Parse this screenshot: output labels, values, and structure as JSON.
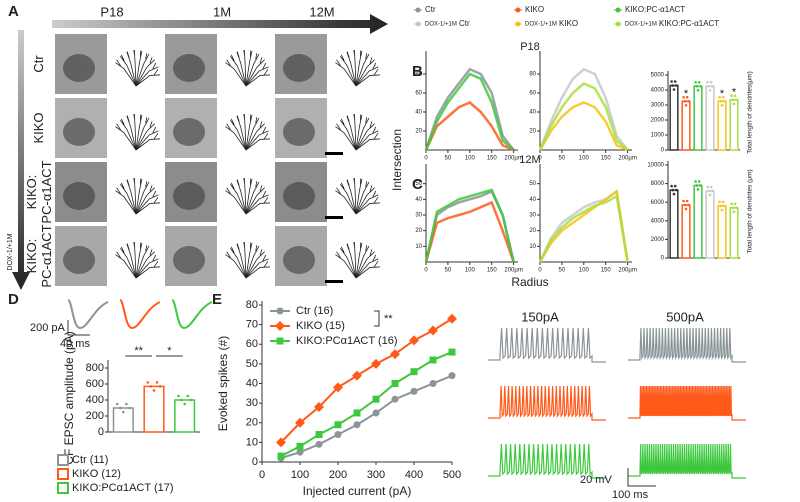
{
  "panel_labels": [
    "A",
    "B",
    "C",
    "D",
    "E"
  ],
  "panel_a": {
    "columns": [
      "P18",
      "1M",
      "12M"
    ],
    "rows": [
      [
        "Ctr"
      ],
      [
        "KIKO"
      ],
      [
        "KIKO:",
        "PC-α1ACT"
      ],
      [
        "KIKO:",
        "PC-α1ACT"
      ]
    ],
    "last_row_prefix": "DOX-1/+1M"
  },
  "legend": [
    {
      "name": "Ctr",
      "color": "#8a9499"
    },
    {
      "prefix": "DOX-1/+1M",
      "name": "Ctr",
      "color": "#c8c8c8"
    },
    {
      "name": "KIKO",
      "color": "#ff5a1a"
    },
    {
      "prefix": "DOX-1/+1M",
      "name": "KIKO",
      "color": "#f4c21a"
    },
    {
      "name": "KIKO:PC-α1ACT",
      "color": "#3ec83e"
    },
    {
      "prefix": "DOX-1/+1M",
      "name": "KIKO:PC-α1ACT",
      "color": "#a8e040"
    }
  ],
  "sholl_axes": {
    "y": "Intersection",
    "x": "Radius"
  },
  "chart_data": [
    {
      "type": "line",
      "title": "P18",
      "x": [
        0,
        25,
        50,
        75,
        100,
        125,
        150,
        175,
        200
      ],
      "xlim": [
        0,
        210
      ],
      "ylim": [
        0,
        100
      ],
      "xticks": [
        0,
        50,
        100,
        150,
        {
          "value": 200,
          "label": "200μm"
        }
      ],
      "yticks": [
        20,
        40,
        60,
        80
      ],
      "series": [
        {
          "color": "#8a9499",
          "values": [
            0,
            35,
            55,
            70,
            85,
            80,
            60,
            15,
            0
          ]
        },
        {
          "color": "#ff5a1a",
          "values": [
            0,
            25,
            35,
            45,
            50,
            40,
            25,
            5,
            0
          ]
        },
        {
          "color": "#3ec83e",
          "values": [
            0,
            30,
            50,
            65,
            80,
            75,
            50,
            10,
            0
          ]
        }
      ]
    },
    {
      "type": "line",
      "x": [
        0,
        25,
        50,
        75,
        100,
        125,
        150,
        175,
        200
      ],
      "xlim": [
        0,
        210
      ],
      "ylim": [
        0,
        100
      ],
      "xticks": [
        0,
        50,
        100,
        150,
        {
          "value": 200,
          "label": "200μm"
        }
      ],
      "yticks": [
        20,
        40,
        60,
        80
      ],
      "series": [
        {
          "color": "#c8c8c8",
          "values": [
            0,
            30,
            55,
            75,
            85,
            80,
            55,
            15,
            0
          ]
        },
        {
          "color": "#f4c21a",
          "values": [
            0,
            20,
            35,
            45,
            50,
            45,
            30,
            5,
            0
          ]
        },
        {
          "color": "#a8e040",
          "values": [
            0,
            25,
            45,
            60,
            70,
            65,
            45,
            10,
            0
          ]
        }
      ]
    },
    {
      "type": "bar",
      "ylabel": "Total length of dendrites(μm)",
      "values": [
        4300,
        3250,
        4250,
        4250,
        3250,
        3350
      ],
      "colors": [
        "#333333",
        "#ff5a1a",
        "#3ec83e",
        "#c8c8c8",
        "#f4c21a",
        "#a8e040"
      ],
      "annotations": [
        null,
        "*",
        null,
        null,
        "*",
        "*"
      ],
      "ylim": [
        0,
        5000
      ],
      "yticks": [
        0,
        1000,
        2000,
        3000,
        4000,
        5000
      ]
    },
    {
      "type": "line",
      "title": "12M",
      "x": [
        0,
        25,
        50,
        75,
        100,
        125,
        150,
        175,
        200
      ],
      "xlim": [
        0,
        210
      ],
      "ylim": [
        0,
        60
      ],
      "xticks": [
        0,
        50,
        100,
        150,
        {
          "value": 200,
          "label": "200μm"
        }
      ],
      "yticks": [
        10,
        20,
        30,
        40,
        50
      ],
      "series": [
        {
          "color": "#8a9499",
          "values": [
            0,
            30,
            35,
            38,
            40,
            42,
            45,
            30,
            0
          ]
        },
        {
          "color": "#ff5a1a",
          "values": [
            0,
            25,
            28,
            30,
            32,
            35,
            38,
            20,
            0
          ]
        },
        {
          "color": "#3ec83e",
          "values": [
            0,
            32,
            36,
            40,
            42,
            44,
            46,
            30,
            0
          ]
        }
      ]
    },
    {
      "type": "line",
      "x": [
        0,
        25,
        50,
        75,
        100,
        125,
        150,
        175,
        200
      ],
      "xlim": [
        0,
        210
      ],
      "ylim": [
        0,
        60
      ],
      "xticks": [
        0,
        50,
        100,
        150,
        {
          "value": 200,
          "label": "200μm"
        }
      ],
      "yticks": [
        10,
        20,
        30,
        40,
        50
      ],
      "series": [
        {
          "color": "#c8c8c8",
          "values": [
            0,
            15,
            25,
            30,
            35,
            38,
            40,
            45,
            0
          ]
        },
        {
          "color": "#f4c21a",
          "values": [
            0,
            12,
            20,
            25,
            30,
            35,
            40,
            45,
            0
          ]
        },
        {
          "color": "#a8e040",
          "values": [
            0,
            14,
            22,
            28,
            32,
            36,
            38,
            42,
            0
          ]
        }
      ]
    },
    {
      "type": "bar",
      "ylabel": "Total length of dendrites (μm)",
      "values": [
        7300,
        5700,
        7800,
        7200,
        5600,
        5400
      ],
      "colors": [
        "#333333",
        "#ff5a1a",
        "#3ec83e",
        "#c8c8c8",
        "#f4c21a",
        "#a8e040"
      ],
      "ylim": [
        0,
        10000
      ],
      "yticks": [
        0,
        2000,
        4000,
        6000,
        8000,
        10000
      ]
    },
    {
      "type": "bar",
      "ylabel": "CF EPSC  amplitude (pA)",
      "ylim": [
        0,
        850
      ],
      "yticks": [
        0,
        200,
        400,
        600,
        800
      ],
      "significance": [
        "**",
        "*"
      ],
      "scale_bar": [
        "200 pA",
        "40 ms"
      ],
      "series": [
        {
          "name": "Ctr (11)",
          "color": "#8a9499",
          "values": [
            300
          ]
        },
        {
          "name": "KIKO (12)",
          "color": "#ff5a1a",
          "values": [
            570
          ]
        },
        {
          "name": "KIKO:PCα1ACT (17)",
          "color": "#3ec83e",
          "values": [
            400
          ]
        }
      ]
    },
    {
      "type": "line",
      "xlabel": "Injected current (pA)",
      "ylabel": "Evoked spikes (#)",
      "legend": "upper left",
      "significance": "**",
      "x": [
        50,
        100,
        150,
        200,
        250,
        300,
        350,
        400,
        450,
        500
      ],
      "xlim": [
        0,
        500
      ],
      "ylim": [
        0,
        80
      ],
      "xticks": [
        0,
        100,
        200,
        300,
        400,
        500
      ],
      "yticks": [
        0,
        10,
        20,
        30,
        40,
        50,
        60,
        70,
        80
      ],
      "series": [
        {
          "name": "Ctr (16)",
          "color": "#8a9499",
          "marker": "circle",
          "values": [
            2,
            5,
            9,
            14,
            19,
            25,
            32,
            36,
            40,
            44
          ]
        },
        {
          "name": "KIKO (15)",
          "color": "#ff5a1a",
          "marker": "diamond",
          "values": [
            10,
            20,
            28,
            38,
            44,
            50,
            55,
            62,
            67,
            73
          ]
        },
        {
          "name": "KIKO:PCα1ACT (16)",
          "color": "#3ec83e",
          "marker": "square",
          "values": [
            3,
            8,
            14,
            19,
            25,
            32,
            40,
            46,
            52,
            56
          ]
        }
      ]
    }
  ],
  "traces": {
    "columns": [
      "150pA",
      "500pA"
    ],
    "scale_bar": [
      "20 mV",
      "100 ms"
    ]
  }
}
